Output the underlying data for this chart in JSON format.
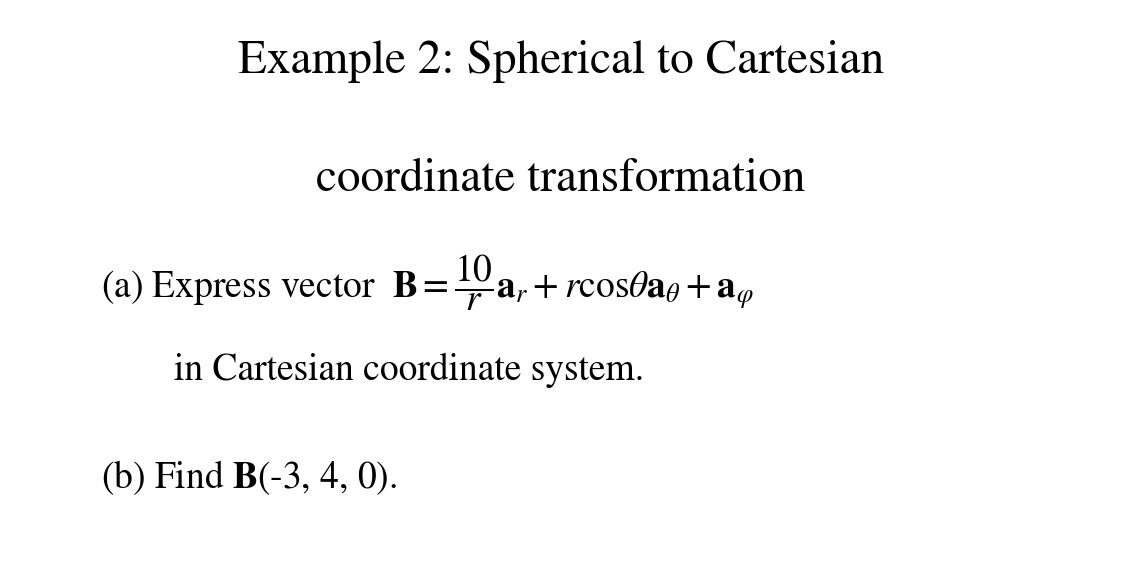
{
  "title_line1": "Example 2: Spherical to Cartesian",
  "title_line2": "coordinate transformation",
  "background_color": "#ffffff",
  "text_color": "#000000",
  "title_fontsize": 34,
  "body_fontsize": 27,
  "fig_width": 11.22,
  "fig_height": 5.65
}
